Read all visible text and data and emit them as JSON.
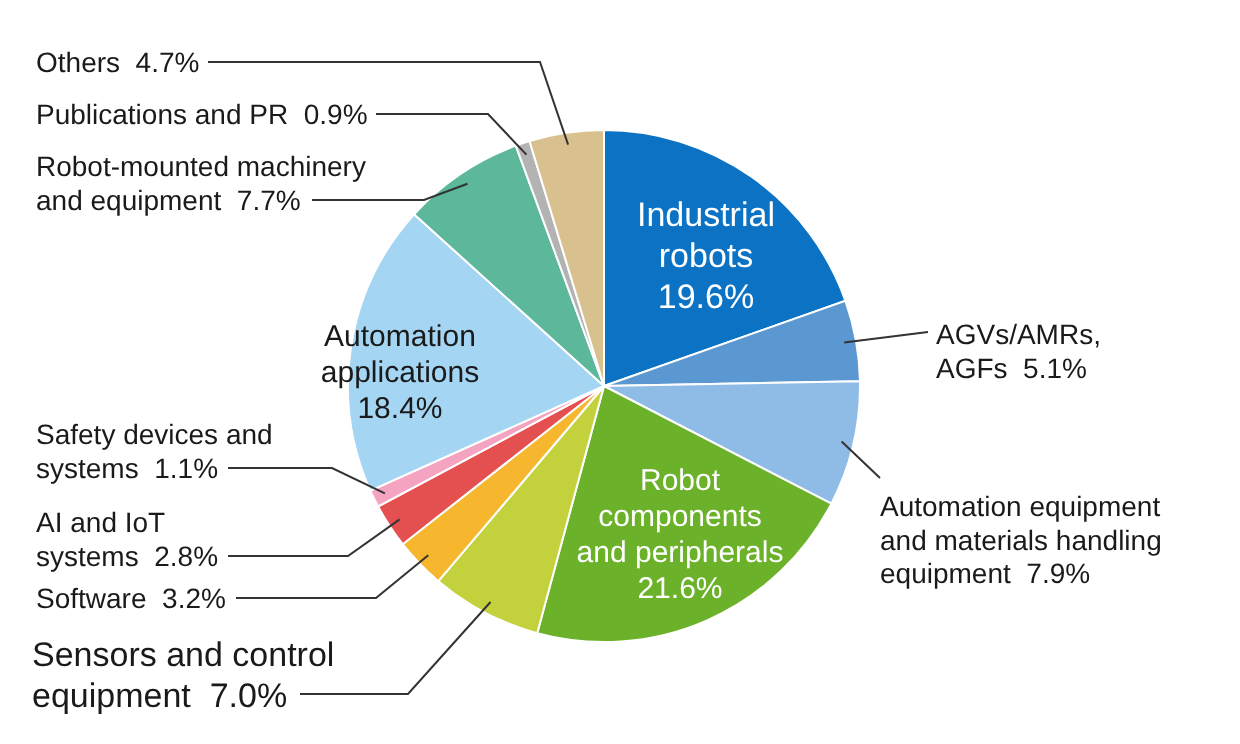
{
  "chart_data": {
    "type": "pie",
    "categories": [
      "Industrial robots",
      "AGVs/AMRs, AGFs",
      "Automation equipment and materials handling equipment",
      "Robot components and peripherals",
      "Sensors and control equipment",
      "Software",
      "AI and IoT systems",
      "Safety devices and systems",
      "Automation applications",
      "Robot-mounted machinery and equipment",
      "Publications and PR",
      "Others"
    ],
    "values": [
      19.6,
      5.1,
      7.9,
      21.6,
      7.0,
      3.2,
      2.8,
      1.1,
      18.4,
      7.7,
      0.9,
      4.7
    ],
    "value_labels": [
      "19.6%",
      "5.1%",
      "7.9%",
      "21.6%",
      "7.0%",
      "3.2%",
      "2.8%",
      "1.1%",
      "18.4%",
      "7.7%",
      "0.9%",
      "4.7%"
    ],
    "colors": [
      "#0b72c4",
      "#5b98d2",
      "#8fbce6",
      "#6cb12a",
      "#c3d23c",
      "#f6b62e",
      "#e4504f",
      "#f4a3c0",
      "#a4d6f4",
      "#5cb79b",
      "#b3b3b3",
      "#d8c08f"
    ]
  }
}
